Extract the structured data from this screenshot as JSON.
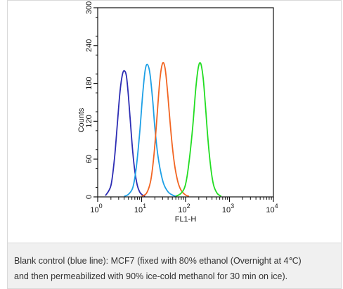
{
  "chart_data": {
    "type": "line",
    "xlabel": "FL1-H",
    "ylabel": "Counts",
    "xscale": "log",
    "xlim": [
      1,
      10000
    ],
    "ylim": [
      0,
      300
    ],
    "x_ticks": [
      {
        "value": 1,
        "base": "10",
        "exp": "0"
      },
      {
        "value": 10,
        "base": "10",
        "exp": "1"
      },
      {
        "value": 100,
        "base": "10",
        "exp": "2"
      },
      {
        "value": 1000,
        "base": "10",
        "exp": "3"
      },
      {
        "value": 10000,
        "base": "10",
        "exp": "4"
      }
    ],
    "y_ticks": [
      "0",
      "60",
      "120",
      "180",
      "240",
      "300"
    ],
    "grid": false,
    "series": [
      {
        "color": "#2d2db4",
        "x": [
          1.5,
          2.0,
          2.4,
          2.8,
          3.2,
          3.6,
          4.0,
          4.5,
          5.0,
          5.6,
          6.3,
          7.1,
          8.0,
          9.0,
          10.0,
          12.0
        ],
        "y": [
          2,
          18,
          60,
          115,
          165,
          192,
          200,
          192,
          160,
          115,
          70,
          38,
          18,
          8,
          4,
          1
        ]
      },
      {
        "color": "#1ea0e6",
        "x": [
          4.0,
          5.0,
          6.3,
          7.5,
          9.0,
          10.5,
          12.0,
          13.5,
          15.5,
          18.0,
          20.0,
          23.0,
          27.0,
          32.0,
          40.0,
          50.0,
          60.0
        ],
        "y": [
          1,
          4,
          15,
          45,
          100,
          160,
          200,
          210,
          195,
          150,
          110,
          70,
          40,
          20,
          8,
          3,
          1
        ]
      },
      {
        "color": "#f26522",
        "x": [
          10.0,
          13.0,
          16.0,
          19.0,
          22.0,
          26.0,
          30.0,
          34.0,
          38.0,
          43.0,
          50.0,
          58.0,
          68.0,
          80.0,
          100.0,
          120.0
        ],
        "y": [
          1,
          6,
          25,
          65,
          120,
          185,
          212,
          205,
          175,
          130,
          80,
          45,
          22,
          10,
          3,
          1
        ]
      },
      {
        "color": "#22dd22",
        "x": [
          60.0,
          80.0,
          100.0,
          120.0,
          145.0,
          170.0,
          195.0,
          220.0,
          250.0,
          280.0,
          320.0,
          370.0,
          430.0,
          520.0,
          650.0
        ],
        "y": [
          1,
          6,
          20,
          55,
          110,
          170,
          205,
          212,
          190,
          150,
          95,
          50,
          20,
          6,
          1
        ]
      }
    ]
  },
  "caption": {
    "line1": "Blank control (blue line): MCF7 (fixed with 80% ethanol (Overnight at 4℃)",
    "line2": "and then permeabilized with 90% ice-cold methanol for 30 min on ice)."
  }
}
